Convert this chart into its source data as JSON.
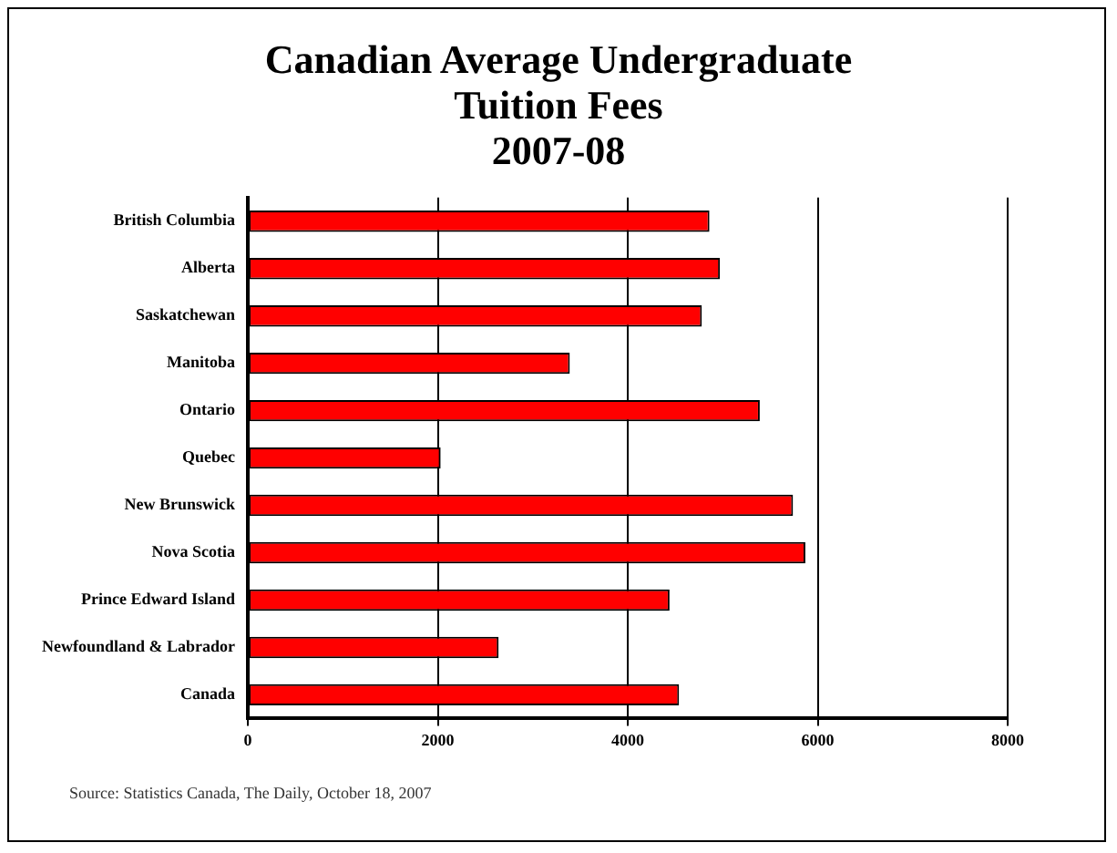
{
  "chart_data": {
    "type": "bar",
    "orientation": "horizontal",
    "title": [
      "Canadian Average Undergraduate",
      "Tuition Fees",
      "2007-08"
    ],
    "categories": [
      "British Columbia",
      "Alberta",
      "Saskatchewan",
      "Manitoba",
      "Ontario",
      "Quebec",
      "New Brunswick",
      "Nova Scotia",
      "Prince Edward Island",
      "Newfoundland & Labrador",
      "Canada"
    ],
    "values": [
      4860,
      4970,
      4780,
      3390,
      5390,
      2030,
      5740,
      5870,
      4440,
      2640,
      4540
    ],
    "color": "#ff0000",
    "xlim": [
      0,
      8000
    ],
    "xticks": [
      0,
      2000,
      4000,
      6000,
      8000
    ],
    "grid": "x",
    "legend": false,
    "annotations": [
      "Source:  Statistics Canada, The Daily, October 18, 2007"
    ]
  }
}
